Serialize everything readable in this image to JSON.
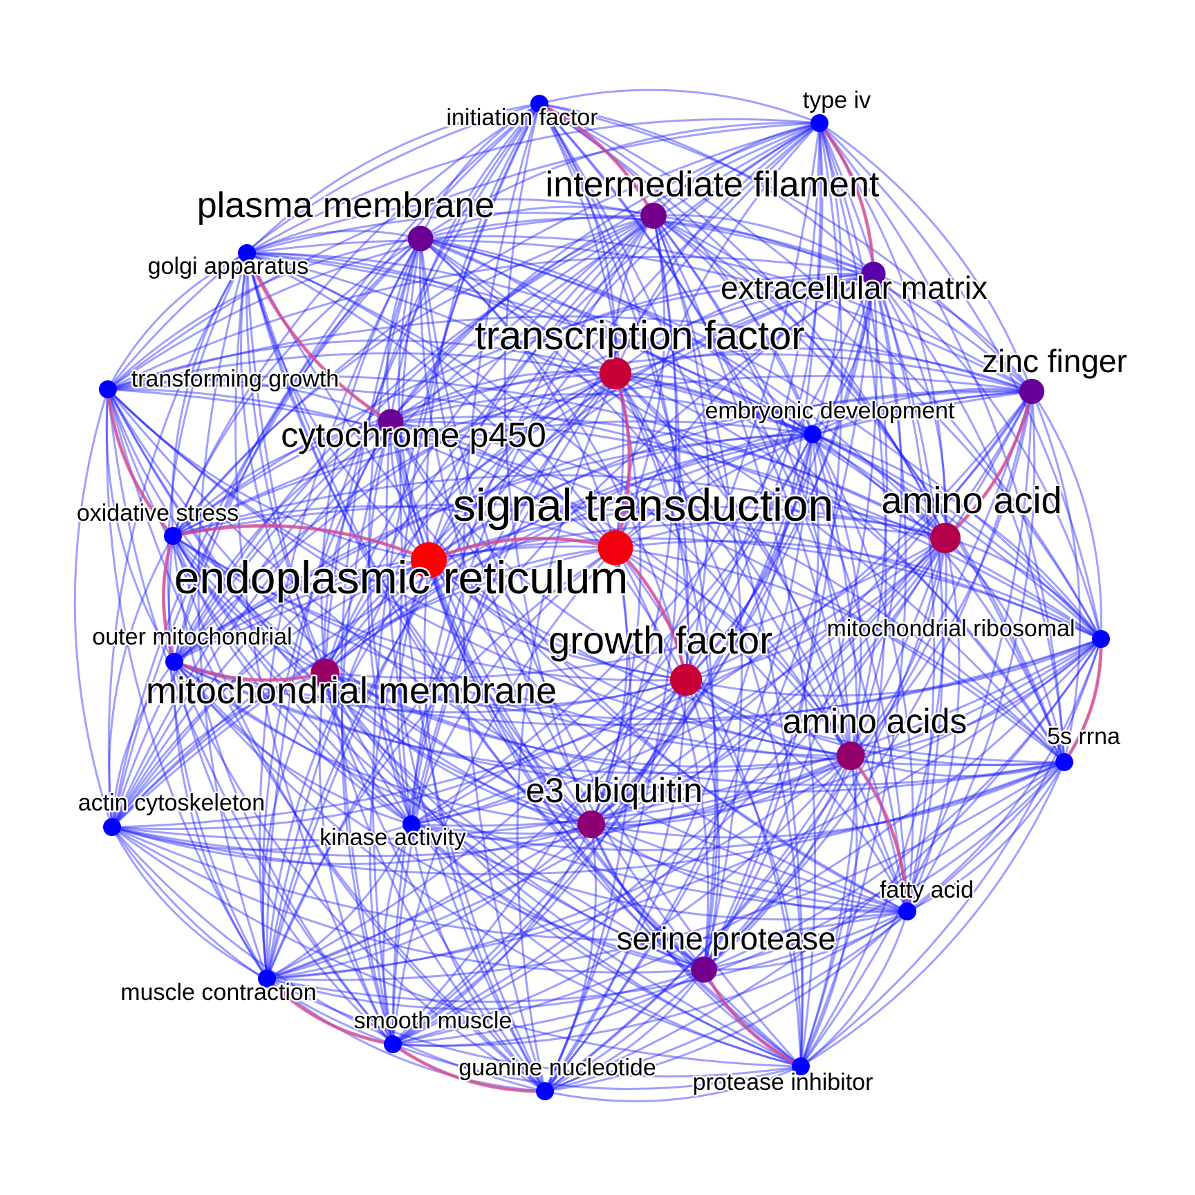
{
  "colors": {
    "background": "#ffffff",
    "edge": "#1a1aff",
    "edge_strong": "#e0508a",
    "node_low": "#0000ff",
    "node_high": "#ff0000",
    "label": "#000000"
  },
  "nodes": [
    {
      "id": "initiation-factor",
      "label": "initiation factor",
      "weight": 0.0
    },
    {
      "id": "type-iv",
      "label": "type iv",
      "weight": 0.0
    },
    {
      "id": "intermediate-filament",
      "label": "intermediate filament",
      "weight": 0.45
    },
    {
      "id": "plasma-membrane",
      "label": "plasma membrane",
      "weight": 0.42
    },
    {
      "id": "golgi-apparatus",
      "label": "golgi apparatus",
      "weight": 0.0
    },
    {
      "id": "extracellular-matrix",
      "label": "extracellular matrix",
      "weight": 0.35
    },
    {
      "id": "transcription-factor",
      "label": "transcription factor",
      "weight": 0.78
    },
    {
      "id": "zinc-finger",
      "label": "zinc finger",
      "weight": 0.4
    },
    {
      "id": "transforming-growth",
      "label": "transforming growth",
      "weight": 0.0
    },
    {
      "id": "embryonic-development",
      "label": "embryonic development",
      "weight": 0.0
    },
    {
      "id": "cytochrome-p450",
      "label": "cytochrome p450",
      "weight": 0.42
    },
    {
      "id": "signal-transduction",
      "label": "signal transduction",
      "weight": 0.95
    },
    {
      "id": "amino-acid",
      "label": "amino acid",
      "weight": 0.7
    },
    {
      "id": "oxidative-stress",
      "label": "oxidative stress",
      "weight": 0.0
    },
    {
      "id": "endoplasmic-reticulum",
      "label": "endoplasmic reticulum",
      "weight": 1.0
    },
    {
      "id": "mitochondrial-ribosomal",
      "label": "mitochondrial ribosomal",
      "weight": 0.0
    },
    {
      "id": "outer-mitochondrial",
      "label": "outer mitochondrial",
      "weight": 0.0
    },
    {
      "id": "growth-factor",
      "label": "growth factor",
      "weight": 0.78
    },
    {
      "id": "mitochondrial-membrane",
      "label": "mitochondrial membrane",
      "weight": 0.6
    },
    {
      "id": "amino-acids",
      "label": "amino acids",
      "weight": 0.58
    },
    {
      "id": "5s-rrna",
      "label": "5s rrna",
      "weight": 0.0
    },
    {
      "id": "actin-cytoskeleton",
      "label": "actin cytoskeleton",
      "weight": 0.0
    },
    {
      "id": "kinase-activity",
      "label": "kinase activity",
      "weight": 0.0
    },
    {
      "id": "e3-ubiquitin",
      "label": "e3 ubiquitin",
      "weight": 0.55
    },
    {
      "id": "fatty-acid",
      "label": "fatty acid",
      "weight": 0.0
    },
    {
      "id": "serine-protease",
      "label": "serine protease",
      "weight": 0.45
    },
    {
      "id": "muscle-contraction",
      "label": "muscle contraction",
      "weight": 0.0
    },
    {
      "id": "smooth-muscle",
      "label": "smooth muscle",
      "weight": 0.0
    },
    {
      "id": "guanine-nucleotide",
      "label": "guanine nucleotide",
      "weight": 0.0
    },
    {
      "id": "protease-inhibitor",
      "label": "protease inhibitor",
      "weight": 0.0
    }
  ],
  "strong_edges": [
    [
      "initiation-factor",
      "intermediate-filament"
    ],
    [
      "type-iv",
      "extracellular-matrix"
    ],
    [
      "golgi-apparatus",
      "cytochrome-p450"
    ],
    [
      "transforming-growth",
      "oxidative-stress"
    ],
    [
      "oxidative-stress",
      "outer-mitochondrial"
    ],
    [
      "outer-mitochondrial",
      "mitochondrial-membrane"
    ],
    [
      "oxidative-stress",
      "endoplasmic-reticulum"
    ],
    [
      "endoplasmic-reticulum",
      "signal-transduction"
    ],
    [
      "signal-transduction",
      "growth-factor"
    ],
    [
      "transcription-factor",
      "signal-transduction"
    ],
    [
      "mitochondrial-ribosomal",
      "5s-rrna"
    ],
    [
      "amino-acid",
      "zinc-finger"
    ],
    [
      "amino-acids",
      "fatty-acid"
    ],
    [
      "serine-protease",
      "protease-inhibitor"
    ],
    [
      "muscle-contraction",
      "smooth-muscle"
    ],
    [
      "smooth-muscle",
      "guanine-nucleotide"
    ]
  ]
}
